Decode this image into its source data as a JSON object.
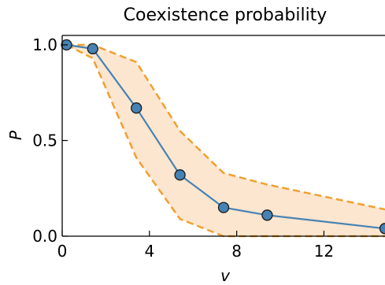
{
  "chart_data": {
    "type": "line",
    "title": "Coexistence probability",
    "xlabel": "v",
    "ylabel": "P",
    "xlim": [
      0,
      14.8
    ],
    "ylim": [
      0,
      1.05
    ],
    "xticks": [
      0,
      4,
      8,
      12
    ],
    "xtick_labels": [
      "0",
      "4",
      "8",
      "12"
    ],
    "yticks": [
      0,
      0.5,
      1.0
    ],
    "ytick_labels": [
      "0.0",
      "0.5",
      "1.0"
    ],
    "grid": false,
    "legend": "none",
    "series": [
      {
        "x": [
          0.2,
          1.4,
          3.4,
          5.4,
          7.4,
          9.4,
          14.8
        ],
        "y": [
          1.0,
          0.98,
          0.67,
          0.32,
          0.15,
          0.11,
          0.04
        ],
        "color": "#4682b4",
        "marker": "circle"
      }
    ],
    "band": {
      "x": [
        0.2,
        1.4,
        3.4,
        5.4,
        7.4,
        9.4,
        14.8
      ],
      "upper": [
        1.0,
        1.0,
        0.91,
        0.55,
        0.33,
        0.27,
        0.14
      ],
      "lower": [
        1.0,
        0.93,
        0.41,
        0.09,
        0.0,
        0.0,
        0.0
      ],
      "fill_color": "#fde6cf",
      "line_color": "#f0a030",
      "line_style": "dashed"
    }
  }
}
